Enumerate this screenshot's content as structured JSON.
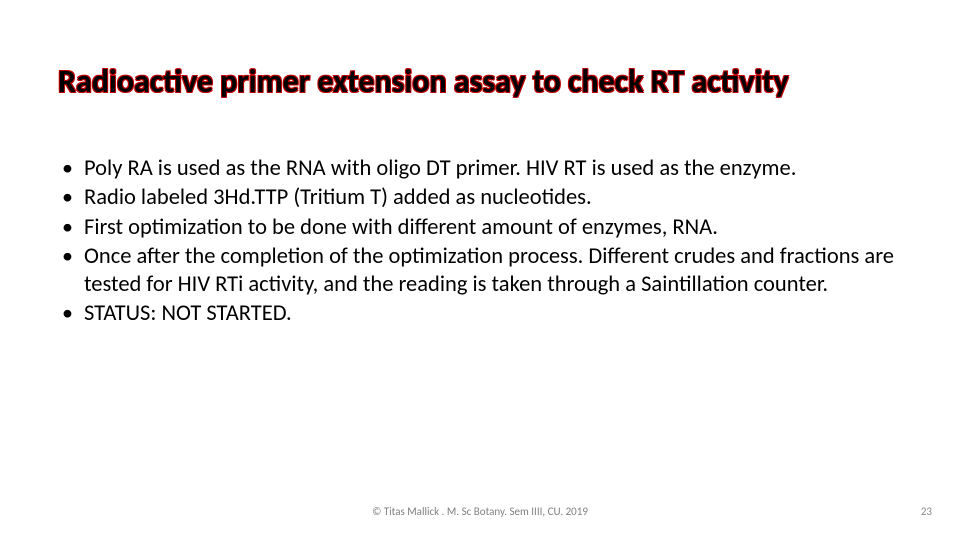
{
  "title": "Radioactive primer extension assay to check RT activity",
  "bullets": [
    "Poly RA is used as the RNA with oligo DT primer. HIV RT is used as the enzyme.",
    "Radio labeled 3Hd.TTP (Tritium T) added as nucleotides.",
    "First optimization to be done with different amount of enzymes, RNA.",
    "Once after the completion of the optimization process. Different crudes and fractions are tested for HIV RTi activity, and the reading is taken through a Saintillation counter.",
    "STATUS: NOT STARTED."
  ],
  "footer_credit": "© Titas Mallick . M. Sc Botany. Sem IIII, CU. 2019",
  "page_number": "23",
  "style": {
    "background_color": "#ffffff",
    "title_font_size_pt": 32,
    "title_font_weight": 700,
    "title_text_color": "#000000",
    "title_outline_color": "#c00000",
    "body_font_size_pt": 22.5,
    "body_text_color": "#000000",
    "bullet_glyph": "•",
    "footer_font_size_pt": 11,
    "footer_color": "#7f7f7f",
    "page_number_color": "#898989",
    "font_family": "Calibri"
  }
}
